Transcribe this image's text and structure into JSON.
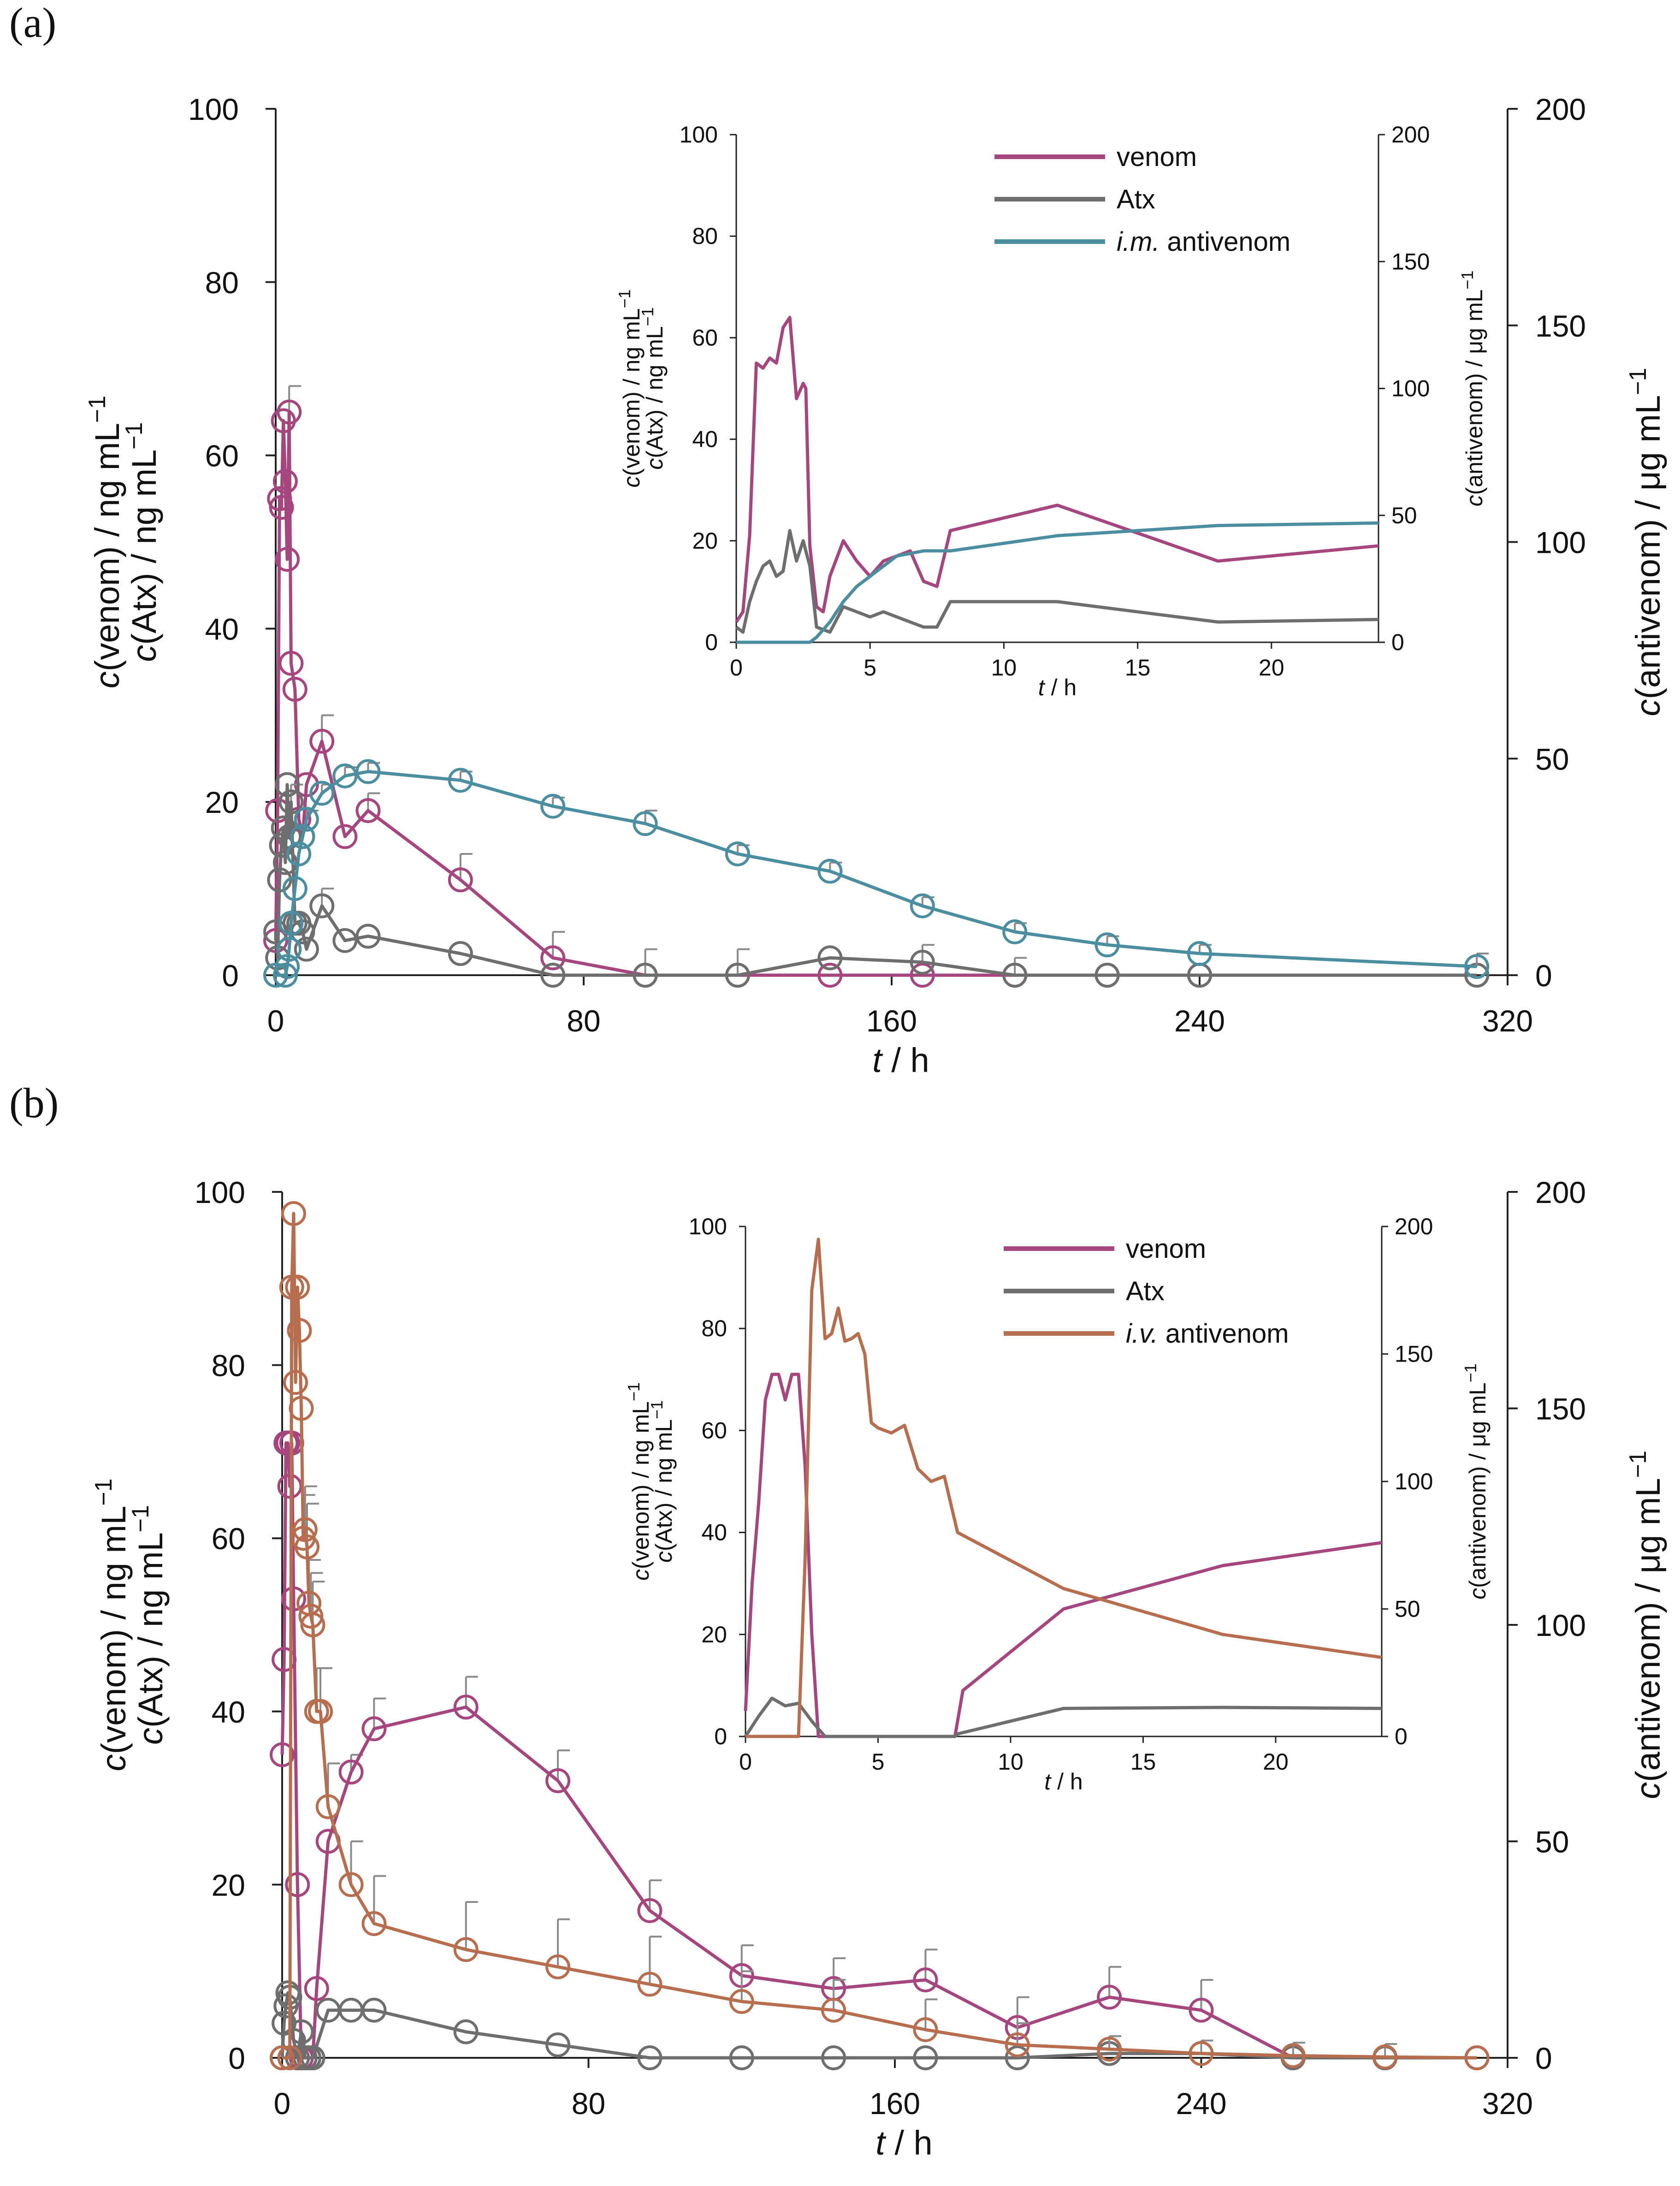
{
  "colors": {
    "venom": "#A6467F",
    "atx": "#6E6E6E",
    "antivenom_im": "#4A8EA0",
    "antivenom_iv": "#B76E4E",
    "error_bar": "#8A8A8A"
  },
  "chart_data": [
    {
      "panel": "(a)",
      "type": "line",
      "xlabel": {
        "italic": "t",
        "rest": " / h"
      },
      "ylabel_left": {
        "venom": "c(venom) / ng mL",
        "atx": "c(Atx) / ng mL",
        "exp": "−1"
      },
      "ylabel_right": {
        "text": "c(antivenom) / μg mL",
        "exp": "−1"
      },
      "xlim": [
        0,
        320
      ],
      "ylim_left": [
        0,
        100
      ],
      "ylim_right": [
        0,
        200
      ],
      "xticks": [
        "0",
        "80",
        "160",
        "240",
        "320"
      ],
      "yticks_left": [
        "0",
        "20",
        "40",
        "60",
        "80",
        "100"
      ],
      "yticks_right": [
        "0",
        "50",
        "100",
        "150",
        "200"
      ],
      "series": [
        {
          "name": "venom",
          "axis": "left",
          "x": [
            0,
            0.5,
            1,
            1.5,
            2,
            2.5,
            3,
            3.5,
            4,
            5,
            6,
            7,
            8,
            12,
            18,
            24,
            48,
            72,
            96,
            120,
            144,
            168,
            192,
            216,
            240,
            312
          ],
          "y": [
            4,
            19,
            55,
            54,
            64,
            57,
            48,
            65,
            36,
            33,
            18,
            16,
            22,
            27,
            16,
            19,
            11,
            2,
            0,
            0,
            0,
            0,
            0,
            0,
            0,
            0
          ],
          "err": [
            0,
            0,
            0,
            0,
            0,
            0,
            0,
            3,
            0,
            0,
            0,
            0,
            0,
            3,
            0,
            2,
            3,
            3,
            0,
            0,
            0,
            0,
            0,
            0,
            0,
            0
          ]
        },
        {
          "name": "Atx",
          "axis": "left",
          "x": [
            0,
            0.5,
            1,
            1.5,
            2,
            2.5,
            3,
            3.5,
            4,
            5,
            6,
            7,
            8,
            12,
            18,
            24,
            48,
            72,
            96,
            120,
            144,
            168,
            192,
            216,
            240,
            312
          ],
          "y": [
            5,
            2,
            11,
            15,
            17,
            13,
            22,
            16,
            20,
            6,
            6,
            5,
            3,
            8,
            4,
            4.5,
            2.5,
            0,
            0,
            0,
            2,
            1.5,
            0,
            0,
            0,
            0
          ],
          "err": [
            0,
            0,
            0,
            0,
            0,
            0,
            0,
            0,
            2,
            0,
            0,
            0,
            0,
            2,
            0,
            0,
            0,
            0,
            3,
            3,
            0,
            2,
            2,
            0,
            0,
            0
          ]
        },
        {
          "name": "i.m. antivenom",
          "axis": "right",
          "x": [
            0,
            2.5,
            3,
            3.5,
            4,
            5,
            6,
            7,
            8,
            12,
            18,
            24,
            48,
            72,
            96,
            120,
            144,
            168,
            192,
            216,
            240,
            312
          ],
          "y": [
            0,
            0,
            2,
            6,
            12,
            20,
            28,
            32,
            36,
            42,
            46,
            47,
            45,
            39,
            35,
            28,
            24,
            16,
            10,
            7,
            5,
            2
          ],
          "err": [
            0,
            0,
            0,
            0,
            0,
            0,
            0,
            0,
            2,
            2,
            2,
            2,
            2,
            2,
            3,
            2,
            2,
            2,
            2,
            2,
            2,
            3
          ]
        }
      ],
      "inset": {
        "xlabel": {
          "italic": "t",
          "rest": " / h"
        },
        "ylabel_left": {
          "venom": "c(venom) / ng mL",
          "atx": "c(Atx) / ng mL",
          "exp": "−1"
        },
        "ylabel_right": {
          "text": "c(antivenom) / μg mL",
          "exp": "−1"
        },
        "xlim": [
          0,
          24
        ],
        "ylim_left": [
          0,
          100
        ],
        "ylim_right": [
          0,
          200
        ],
        "xticks": [
          "0",
          "5",
          "10",
          "15",
          "20"
        ],
        "yticks_left": [
          "0",
          "20",
          "40",
          "60",
          "80",
          "100"
        ],
        "yticks_right": [
          "0",
          "50",
          "100",
          "150",
          "200"
        ],
        "legend": [
          {
            "label": "venom",
            "series": "venom"
          },
          {
            "label": "Atx",
            "series": "Atx"
          },
          {
            "label_italic": "i.m.",
            "label_rest": " antivenom",
            "series": "i.m. antivenom"
          }
        ],
        "series": [
          {
            "name": "venom",
            "axis": "left",
            "x": [
              0,
              0.25,
              0.5,
              0.75,
              1,
              1.25,
              1.5,
              1.75,
              2,
              2.25,
              2.5,
              2.6,
              2.75,
              3,
              3.25,
              3.5,
              4,
              4.5,
              5,
              5.5,
              6,
              6.5,
              7,
              7.5,
              8,
              12,
              18,
              24
            ],
            "y": [
              4,
              6,
              21,
              55,
              54,
              56,
              55,
              62,
              64,
              48,
              51,
              50,
              19,
              7,
              6,
              13,
              20,
              16,
              13,
              16,
              17,
              18,
              12,
              11,
              22,
              27,
              16,
              19
            ]
          },
          {
            "name": "Atx",
            "axis": "left",
            "x": [
              0,
              0.25,
              0.5,
              0.75,
              1,
              1.25,
              1.5,
              1.75,
              2,
              2.25,
              2.5,
              2.75,
              3,
              3.5,
              4,
              4.5,
              5,
              5.5,
              6,
              6.5,
              7,
              7.5,
              8,
              12,
              18,
              24
            ],
            "y": [
              3,
              2,
              8,
              12,
              15,
              16,
              13,
              14,
              22,
              16,
              20,
              15,
              3,
              2,
              7,
              6,
              5,
              6,
              5,
              4,
              3,
              3,
              8,
              8,
              4,
              4.5
            ]
          },
          {
            "name": "i.m. antivenom",
            "axis": "right",
            "x": [
              0,
              2.5,
              2.75,
              3,
              3.5,
              4,
              4.5,
              5,
              5.5,
              6,
              7,
              8,
              12,
              18,
              24
            ],
            "y": [
              0,
              0,
              0,
              2,
              8,
              16,
              22,
              26,
              30,
              34,
              36,
              36,
              42,
              46,
              47
            ]
          }
        ]
      }
    },
    {
      "panel": "(b)",
      "type": "line",
      "xlabel": {
        "italic": "t",
        "rest": " / h"
      },
      "ylabel_left": {
        "venom": "c(venom) / ng mL",
        "atx": "c(Atx) / ng mL",
        "exp": "−1"
      },
      "ylabel_right": {
        "text": "c(antivenom) / μg mL",
        "exp": "−1"
      },
      "xlim": [
        0,
        320
      ],
      "ylim_left": [
        0,
        100
      ],
      "ylim_right": [
        0,
        200
      ],
      "xticks": [
        "0",
        "80",
        "160",
        "240",
        "320"
      ],
      "yticks_left": [
        "0",
        "20",
        "40",
        "60",
        "80",
        "100"
      ],
      "yticks_right": [
        "0",
        "50",
        "100",
        "150",
        "200"
      ],
      "series": [
        {
          "name": "venom",
          "axis": "left",
          "x": [
            0,
            0.5,
            1,
            1.5,
            2,
            2.5,
            3,
            4,
            5,
            6,
            7,
            8,
            9,
            12,
            18,
            24,
            48,
            72,
            96,
            120,
            144,
            168,
            192,
            216,
            240,
            264,
            288,
            312
          ],
          "y": [
            35,
            46,
            71,
            71,
            66,
            71,
            53,
            20,
            0,
            0,
            0,
            0,
            8,
            25,
            33,
            38,
            40.5,
            32,
            17,
            9.5,
            8,
            9,
            3.5,
            7,
            5.5,
            0,
            0,
            0
          ],
          "err": [
            0,
            0,
            0,
            0,
            0,
            0,
            0,
            0,
            0,
            0,
            0,
            0,
            0,
            0,
            2,
            3.5,
            3.5,
            3.5,
            3.5,
            3.5,
            3.5,
            3.5,
            3.5,
            3.5,
            3.5,
            0,
            0,
            0
          ]
        },
        {
          "name": "Atx",
          "axis": "left",
          "x": [
            0,
            0.5,
            1,
            1.5,
            2,
            3,
            4,
            5,
            6,
            7,
            8,
            12,
            18,
            24,
            48,
            72,
            96,
            120,
            144,
            168,
            192,
            216,
            240,
            264,
            288,
            312
          ],
          "y": [
            0,
            4,
            6,
            7.5,
            7,
            2,
            0,
            3,
            0,
            0,
            0,
            5.5,
            5.5,
            5.5,
            3,
            1.5,
            0,
            0,
            0,
            0,
            0,
            0.5,
            0.5,
            0,
            0,
            0
          ],
          "err": [
            0,
            0,
            0,
            0,
            0,
            0,
            0,
            0,
            0,
            0,
            0,
            0,
            0,
            0,
            0,
            0,
            0,
            0,
            0,
            0,
            0,
            0,
            0,
            0,
            0,
            0
          ]
        },
        {
          "name": "i.v. antivenom",
          "axis": "right",
          "x": [
            0,
            2,
            2.5,
            3,
            3.5,
            4,
            4.5,
            5,
            5.5,
            6,
            6.5,
            7,
            7.5,
            8,
            9,
            10,
            12,
            18,
            24,
            48,
            72,
            96,
            120,
            144,
            168,
            192,
            216,
            240,
            264,
            288,
            312
          ],
          "y": [
            0,
            0,
            178,
            195,
            156,
            178,
            168,
            150,
            120,
            122,
            118,
            105,
            102,
            100,
            80,
            80,
            58,
            40,
            31,
            25,
            21,
            17,
            13,
            11,
            6.5,
            3,
            2,
            1,
            0.5,
            0.2,
            0
          ],
          "err": [
            0,
            0,
            0,
            0,
            0,
            0,
            0,
            0,
            10,
            10,
            10,
            10,
            10,
            10,
            10,
            10,
            10,
            10,
            11,
            11,
            11,
            11,
            7,
            7,
            7,
            5,
            3,
            3,
            3,
            3,
            0
          ]
        }
      ],
      "inset": {
        "xlabel": {
          "italic": "t",
          "rest": " / h"
        },
        "ylabel_left": {
          "venom": "c(venom) / ng mL",
          "atx": "c(Atx) / ng mL",
          "exp": "−1"
        },
        "ylabel_right": {
          "text": "c(antivenom) / μg mL",
          "exp": "−1"
        },
        "xlim": [
          0,
          24
        ],
        "ylim_left": [
          0,
          100
        ],
        "ylim_right": [
          0,
          200
        ],
        "xticks": [
          "0",
          "5",
          "10",
          "15",
          "20"
        ],
        "yticks_left": [
          "0",
          "20",
          "40",
          "60",
          "80",
          "100"
        ],
        "yticks_right": [
          "0",
          "50",
          "100",
          "150",
          "200"
        ],
        "legend": [
          {
            "label": "venom",
            "series": "venom"
          },
          {
            "label": "Atx",
            "series": "Atx"
          },
          {
            "label_italic": "i.v.",
            "label_rest": " antivenom",
            "series": "i.v. antivenom"
          }
        ],
        "series": [
          {
            "name": "venom",
            "axis": "left",
            "x": [
              0,
              0.25,
              0.5,
              0.75,
              1,
              1.25,
              1.5,
              1.75,
              2,
              2.25,
              2.5,
              2.75,
              3,
              7.9,
              8.2,
              12,
              18,
              24
            ],
            "y": [
              5,
              30,
              46,
              66,
              71,
              71,
              66,
              71,
              71,
              53,
              20,
              0,
              0,
              0,
              9,
              25,
              33.5,
              38
            ]
          },
          {
            "name": "Atx",
            "axis": "left",
            "x": [
              0,
              0.5,
              1,
              1.5,
              2,
              2.5,
              3,
              7.9,
              8,
              12,
              18,
              24
            ],
            "y": [
              0,
              4,
              7.5,
              6,
              6.5,
              3,
              0,
              0,
              0.5,
              5.5,
              5.7,
              5.5
            ]
          },
          {
            "name": "i.v. antivenom",
            "axis": "right",
            "x": [
              0,
              2,
              2.25,
              2.5,
              2.75,
              3,
              3.25,
              3.5,
              3.75,
              4,
              4.25,
              4.5,
              4.75,
              5,
              5.25,
              5.5,
              6,
              6.5,
              7,
              7.5,
              8,
              12,
              18,
              24
            ],
            "y": [
              0,
              0,
              70,
              175,
              195,
              156,
              158,
              168,
              155,
              156,
              158,
              150,
              123,
              121,
              120,
              119,
              122,
              105,
              100,
              102,
              80,
              58,
              40,
              31
            ]
          }
        ]
      }
    }
  ]
}
